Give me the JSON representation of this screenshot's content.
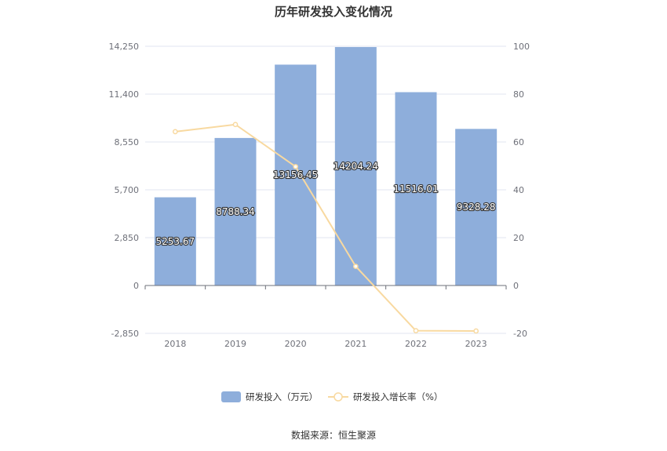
{
  "chart_data": {
    "type": "bar+line",
    "title": "历年研发投入变化情况",
    "categories": [
      "2018",
      "2019",
      "2020",
      "2021",
      "2022",
      "2023"
    ],
    "series": [
      {
        "name": "研发投入（万元）",
        "type": "bar",
        "axis": "left",
        "color": "#8eaedb",
        "values": [
          5253.67,
          8788.34,
          13156.45,
          14204.24,
          11516.01,
          9328.28
        ],
        "labels": [
          "5253.67",
          "8788.34",
          "13156.45",
          "14204.24",
          "11516.01",
          "9328.28"
        ]
      },
      {
        "name": "研发投入增长率（%）",
        "type": "line",
        "axis": "right",
        "color": "#f8d9a0",
        "values": [
          64.3,
          67.3,
          49.7,
          8.0,
          -18.9,
          -19.0
        ]
      }
    ],
    "y_left": {
      "min": -2850,
      "max": 14250,
      "ticks": [
        "-2,850",
        "0",
        "2,850",
        "5,700",
        "8,550",
        "11,400",
        "14,250"
      ]
    },
    "y_right": {
      "min": -20,
      "max": 100,
      "ticks": [
        "-20",
        "0",
        "20",
        "40",
        "60",
        "80",
        "100"
      ]
    },
    "grid": true,
    "legend_position": "bottom"
  },
  "footer": {
    "source": "数据来源：恒生聚源"
  }
}
